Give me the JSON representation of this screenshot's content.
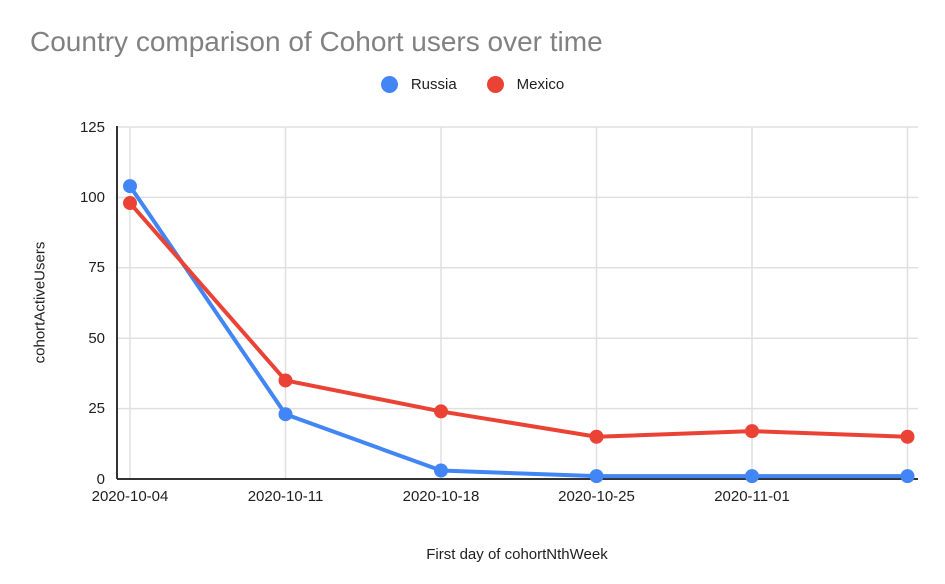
{
  "chart_data": {
    "type": "line",
    "title": "Country comparison of Cohort users over time",
    "xlabel": "First day of cohortNthWeek",
    "ylabel": "cohortActiveUsers",
    "x_tick_labels": [
      "2020-10-04",
      "2020-10-11",
      "2020-10-18",
      "2020-10-25",
      "2020-11-01"
    ],
    "num_points": 6,
    "series": [
      {
        "name": "Russia",
        "color": "#4285F4",
        "values": [
          104,
          23,
          3,
          1,
          1,
          1
        ]
      },
      {
        "name": "Mexico",
        "color": "#EA4335",
        "values": [
          98,
          35,
          24,
          15,
          17,
          15
        ]
      }
    ],
    "yticks": [
      0,
      25,
      50,
      75,
      100,
      125
    ],
    "ylim": [
      0,
      125
    ],
    "grid": true,
    "legend_position": "top",
    "colors": {
      "grid": "#e0e0e0",
      "axis": "#333333",
      "title_text": "#818181",
      "tick_text": "#1f1f1f"
    }
  }
}
